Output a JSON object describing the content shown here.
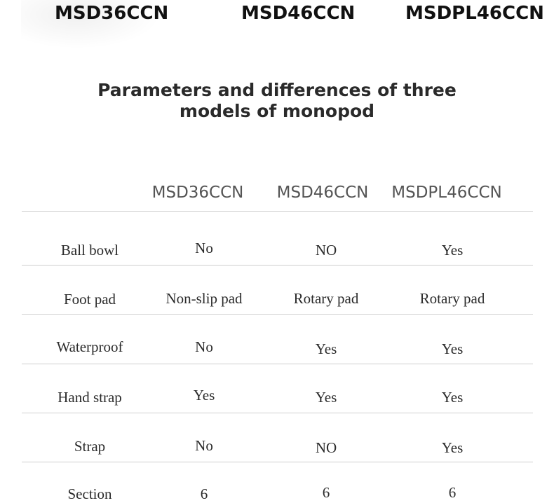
{
  "top_banner": {
    "models": [
      "MSD36CCN",
      "MSD46CCN",
      "MSDPL46CCN"
    ]
  },
  "title": {
    "line1": "Parameters and differences of three",
    "line2": "models of monopod"
  },
  "table": {
    "headers": [
      "MSD36CCN",
      "MSD46CCN",
      "MSDPL46CCN"
    ],
    "rows": [
      {
        "label": "Ball bowl",
        "values": [
          "No",
          "NO",
          "Yes"
        ]
      },
      {
        "label": "Foot pad",
        "values": [
          "Non-slip pad",
          "Rotary pad",
          "Rotary pad"
        ]
      },
      {
        "label": "Waterproof",
        "values": [
          "No",
          "Yes",
          "Yes"
        ]
      },
      {
        "label": "Hand strap",
        "values": [
          "Yes",
          "Yes",
          "Yes"
        ]
      },
      {
        "label": "Strap",
        "values": [
          "No",
          "NO",
          "Yes"
        ]
      },
      {
        "label": "Section",
        "values": [
          "6",
          "6",
          "6"
        ]
      }
    ]
  },
  "colors": {
    "background": "#ffffff",
    "text": "#222222",
    "header_text": "#555555",
    "rule": "#cfcfcf"
  }
}
